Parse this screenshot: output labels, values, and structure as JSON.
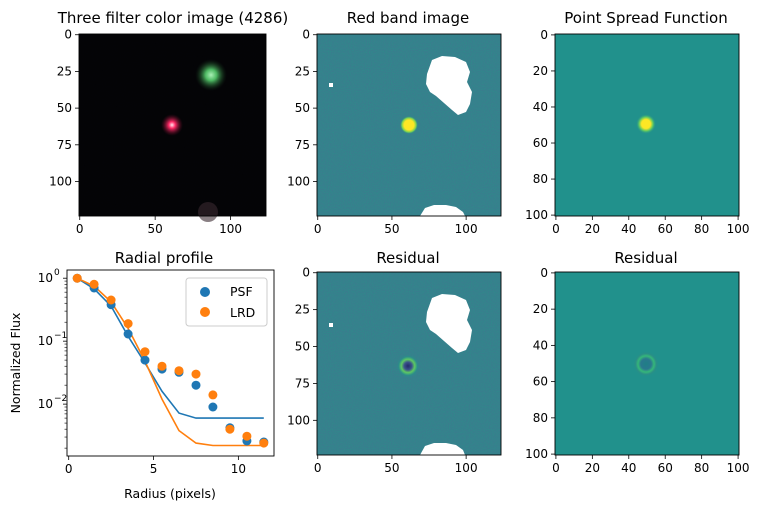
{
  "chart_data": [
    {
      "type": "image",
      "title": "Three filter color image (4286)",
      "xticks": [
        0,
        50,
        100
      ],
      "yticks": [
        0,
        25,
        50,
        75,
        100
      ],
      "xlim": [
        0,
        124
      ],
      "ylim": [
        0,
        124
      ],
      "sources": [
        {
          "kind": "point",
          "x": 62,
          "y": 62,
          "color": "#ff2a66"
        },
        {
          "kind": "extended",
          "x": 87,
          "y": 30,
          "color": "#5ccc66"
        }
      ]
    },
    {
      "type": "image",
      "title": "Red band image",
      "xticks": [
        0,
        50,
        100
      ],
      "yticks": [
        0,
        25,
        50,
        75,
        100
      ],
      "xlim": [
        0,
        124
      ],
      "ylim": [
        0,
        124
      ],
      "background_color": "#2b8d8a",
      "source_color": "#fde725",
      "mask_color": "#ffffff"
    },
    {
      "type": "image",
      "title": "Point Spread Function",
      "xticks": [
        0,
        20,
        40,
        60,
        80,
        100
      ],
      "yticks": [
        0,
        20,
        40,
        60,
        80,
        100
      ],
      "xlim": [
        0,
        101
      ],
      "ylim": [
        0,
        101
      ],
      "background_color": "#21918c",
      "source_color": "#fde725"
    },
    {
      "type": "line",
      "title": "Radial profile",
      "xlabel": "Radius (pixels)",
      "ylabel": "Normalized Flux",
      "yscale": "log",
      "xlim": [
        -0.1,
        12.1
      ],
      "ylim": [
        0.0015,
        1.35
      ],
      "xticks": [
        0,
        5,
        10
      ],
      "yticks": [
        0.01,
        0.1,
        1
      ],
      "yticklabels": [
        "10",
        "10",
        "10"
      ],
      "ytickexponents": [
        "−2",
        "−1",
        "0"
      ],
      "legend": "top-right",
      "series": [
        {
          "name": "PSF",
          "color": "#1f77b4",
          "points_x": [
            0.5,
            1.5,
            2.5,
            3.5,
            4.5,
            5.5,
            6.5,
            7.5,
            8.5,
            9.5,
            10.5,
            11.5
          ],
          "points_y": [
            1.0,
            0.7,
            0.38,
            0.13,
            0.05,
            0.036,
            0.032,
            0.02,
            0.009,
            0.0042,
            0.0026,
            0.0025
          ],
          "line_x": [
            0.5,
            1.5,
            2.5,
            3.5,
            4.5,
            5.5,
            6.5,
            7.5,
            8.5,
            9.5,
            10.5,
            11.5
          ],
          "line_y": [
            1.0,
            0.68,
            0.36,
            0.12,
            0.045,
            0.016,
            0.0072,
            0.006,
            0.006,
            0.006,
            0.006,
            0.006
          ]
        },
        {
          "name": "LRD",
          "color": "#ff7f0e",
          "points_x": [
            0.5,
            1.5,
            2.5,
            3.5,
            4.5,
            5.5,
            6.5,
            7.5,
            8.5,
            9.5,
            10.5,
            11.5
          ],
          "points_y": [
            1.0,
            0.8,
            0.45,
            0.19,
            0.068,
            0.04,
            0.034,
            0.03,
            0.014,
            0.004,
            0.0031,
            0.0024
          ],
          "line_x": [
            0.5,
            1.5,
            2.5,
            3.5,
            4.5,
            5.5,
            6.5,
            7.5,
            8.5,
            9.5,
            10.5,
            11.5
          ],
          "line_y": [
            1.0,
            0.75,
            0.42,
            0.16,
            0.048,
            0.012,
            0.0038,
            0.0024,
            0.0022,
            0.0022,
            0.0022,
            0.0022
          ]
        }
      ]
    },
    {
      "type": "image",
      "title": "Residual",
      "xticks": [
        0,
        50,
        100
      ],
      "yticks": [
        0,
        25,
        50,
        75,
        100
      ],
      "xlim": [
        0,
        124
      ],
      "ylim": [
        0,
        124
      ],
      "background_color": "#2b8d8a",
      "mask_color": "#ffffff"
    },
    {
      "type": "image",
      "title": "Residual",
      "xticks": [
        0,
        20,
        40,
        60,
        80,
        100
      ],
      "yticks": [
        0,
        20,
        40,
        60,
        80,
        100
      ],
      "xlim": [
        0,
        101
      ],
      "ylim": [
        0,
        101
      ],
      "background_color": "#21918c"
    }
  ]
}
